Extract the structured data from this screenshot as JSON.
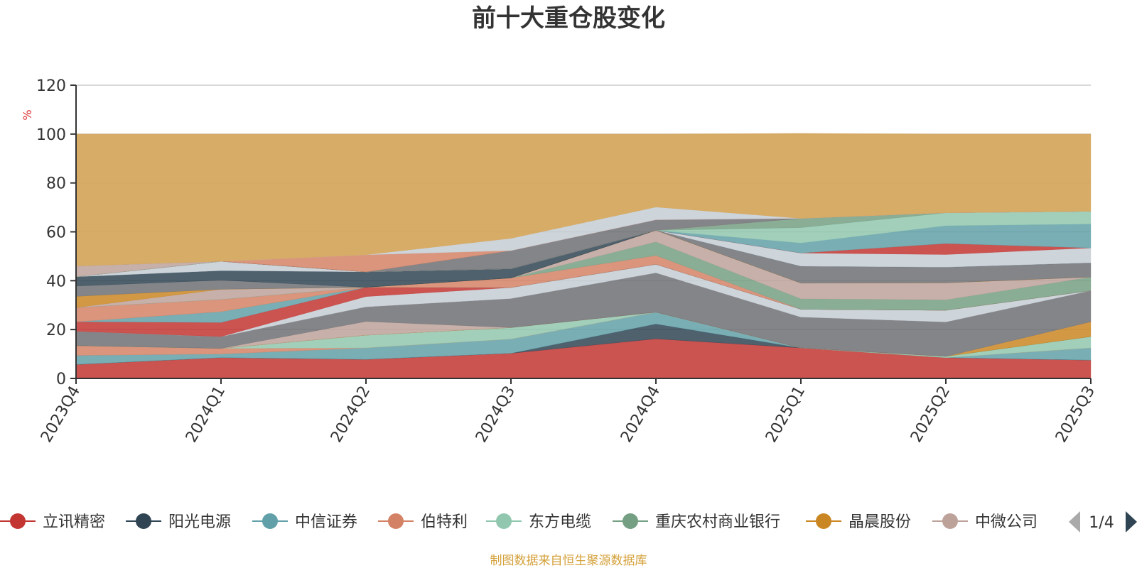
{
  "chart_data": {
    "type": "area",
    "stacked": true,
    "title": "前十大重仓股变化",
    "ylabel": "%",
    "xlabel": "",
    "categories": [
      "2023Q4",
      "2024Q1",
      "2024Q2",
      "2024Q3",
      "2024Q4",
      "2025Q1",
      "2025Q2",
      "2025Q3"
    ],
    "ylim": [
      0,
      120
    ],
    "yticks": [
      0,
      20,
      40,
      60,
      80,
      100,
      120
    ],
    "grid": true,
    "series": [
      {
        "name": "立讯精密",
        "color": "#c23531",
        "values": [
          5.7,
          8.5,
          7.8,
          10.3,
          16.2,
          12.5,
          8.5,
          7.5
        ]
      },
      {
        "name": "阳光电源",
        "color": "#2f4554",
        "values": [
          0,
          0,
          0,
          0,
          6.1,
          0,
          0,
          0
        ]
      },
      {
        "name": "中信证券",
        "color": "#61a0a8",
        "values": [
          3.7,
          1.5,
          4.7,
          5.8,
          4.8,
          0,
          0,
          5.0
        ]
      },
      {
        "name": "伯特利",
        "color": "#d48265",
        "values": [
          4.0,
          2.3,
          0,
          0,
          0,
          0,
          0,
          0
        ]
      },
      {
        "name": "东方电缆",
        "color": "#91c7ae",
        "values": [
          0,
          0,
          5.2,
          4.7,
          0,
          0,
          0.5,
          4.6
        ]
      },
      {
        "name": "重庆农村商业银行",
        "color": "#749f83",
        "values": [
          0,
          0,
          0,
          0,
          0,
          0,
          0,
          0
        ]
      },
      {
        "name": "晶晨股份",
        "color": "#ca8622",
        "values": [
          0,
          0,
          0,
          0,
          0,
          0,
          0,
          6.1
        ]
      },
      {
        "name": "中微公司",
        "color": "#bda29a",
        "values": [
          0,
          0,
          5.6,
          0,
          0,
          0,
          0,
          0
        ]
      },
      {
        "name": "",
        "color": "#6e7074",
        "values": [
          5.9,
          4.8,
          6.0,
          11.9,
          16.1,
          12.6,
          14.1,
          12.7
        ]
      },
      {
        "name": "",
        "color": "#c4ccd3",
        "values": [
          0,
          0,
          4.2,
          4.5,
          3.5,
          3.2,
          4.8,
          0
        ]
      },
      {
        "name": "",
        "color": "#c23531",
        "values": [
          3.9,
          5.8,
          3.8,
          0,
          0,
          0,
          0,
          0
        ]
      },
      {
        "name": "",
        "color": "#61a0a8",
        "values": [
          0,
          4.4,
          0,
          0,
          0,
          0,
          0,
          0
        ]
      },
      {
        "name": "",
        "color": "#d48265",
        "values": [
          5.8,
          5.0,
          0,
          3.9,
          3.6,
          0,
          0,
          0
        ]
      },
      {
        "name": "",
        "color": "#749f83",
        "values": [
          0,
          0,
          0,
          0,
          5.6,
          4.3,
          4.3,
          5.6
        ]
      },
      {
        "name": "",
        "color": "#bda29a",
        "values": [
          0,
          4.2,
          0,
          0,
          4.7,
          6.4,
          6.9,
          0
        ]
      },
      {
        "name": "",
        "color": "#ca8622",
        "values": [
          4.6,
          0,
          0,
          0,
          0,
          0,
          0,
          0
        ]
      },
      {
        "name": "",
        "color": "#6e7074",
        "values": [
          4.2,
          3.7,
          0,
          0,
          0,
          6.9,
          6.4,
          5.8
        ]
      },
      {
        "name": "",
        "color": "#2f4554",
        "values": [
          3.8,
          3.9,
          6.3,
          3.8,
          0,
          0,
          0,
          0
        ]
      },
      {
        "name": "",
        "color": "#c4ccd3",
        "values": [
          0,
          3.8,
          0,
          0,
          0,
          5.4,
          5.2,
          6.1
        ]
      },
      {
        "name": "",
        "color": "#c23531",
        "values": [
          0,
          0,
          0,
          0,
          0,
          0,
          4.5,
          0
        ]
      },
      {
        "name": "",
        "color": "#61a0a8",
        "values": [
          0,
          0,
          0,
          0,
          0,
          4.1,
          7.3,
          9.8
        ]
      },
      {
        "name": "",
        "color": "#91c7ae",
        "values": [
          0,
          0,
          0,
          0,
          0,
          6.3,
          5.3,
          5.2
        ]
      },
      {
        "name": "",
        "color": "#749f83",
        "values": [
          0,
          0,
          0,
          0,
          0,
          3.8,
          0,
          0
        ]
      },
      {
        "name": "",
        "color": "#bda29a",
        "values": [
          4.4,
          0,
          0,
          0,
          0,
          0,
          0,
          0
        ]
      },
      {
        "name": "",
        "color": "#6e7074",
        "values": [
          0,
          0,
          0,
          7.4,
          4.3,
          0,
          0,
          0
        ]
      },
      {
        "name": "",
        "color": "#d48265",
        "values": [
          0,
          0,
          7.0,
          0,
          0,
          0,
          0,
          0
        ]
      },
      {
        "name": "",
        "color": "#c4ccd3",
        "values": [
          0,
          0,
          0,
          5.0,
          5.2,
          0,
          0,
          0
        ]
      },
      {
        "name": "",
        "color": "#d4a55a",
        "values": [
          54.0,
          52.1,
          49.4,
          42.7,
          29.9,
          34.8,
          32.2,
          31.6
        ]
      }
    ],
    "legend": {
      "position": "bottom",
      "page": "1/4"
    }
  },
  "footer": {
    "source": "制图数据来自恒生聚源数据库"
  },
  "colors": {
    "title": "#333333",
    "axis": "#333333",
    "grid": "#cccccc",
    "unit": "#e03030",
    "source": "#d4a03a",
    "pager_active": "#2f4554",
    "pager_inactive": "#aaaaaa"
  }
}
